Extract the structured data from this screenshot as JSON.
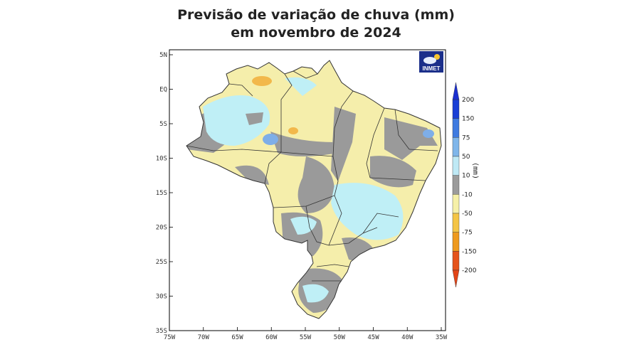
{
  "title": {
    "line1": "Previsão de variação de chuva (mm)",
    "line2": "em novembro de 2024"
  },
  "logo": {
    "text": "INMET"
  },
  "map": {
    "lat_labels": [
      "5N",
      "EQ",
      "5S",
      "10S",
      "15S",
      "20S",
      "25S",
      "30S",
      "35S"
    ],
    "lon_labels": [
      "75W",
      "70W",
      "65W",
      "60W",
      "55W",
      "50W",
      "45W",
      "40W",
      "35W"
    ],
    "lat_range": [
      5,
      -35
    ],
    "lon_range": [
      -75,
      -35
    ]
  },
  "colorbar": {
    "unit": "(mm)",
    "ticks": [
      "200",
      "150",
      "75",
      "50",
      "10",
      "-10",
      "-50",
      "-75",
      "-150",
      "-200"
    ],
    "colors": [
      "#1a3fd6",
      "#3f7be0",
      "#7fb6ea",
      "#bfe9f5",
      "#9b9b9b",
      "#f6f0a8",
      "#f4c546",
      "#ee9a1e",
      "#e5541b"
    ]
  },
  "legend_colors": {
    "cyan": "#bfeff6",
    "gray": "#9a9a9a",
    "yellow": "#f5eeab",
    "orange": "#f2b84b",
    "blue": "#7eaee8"
  }
}
